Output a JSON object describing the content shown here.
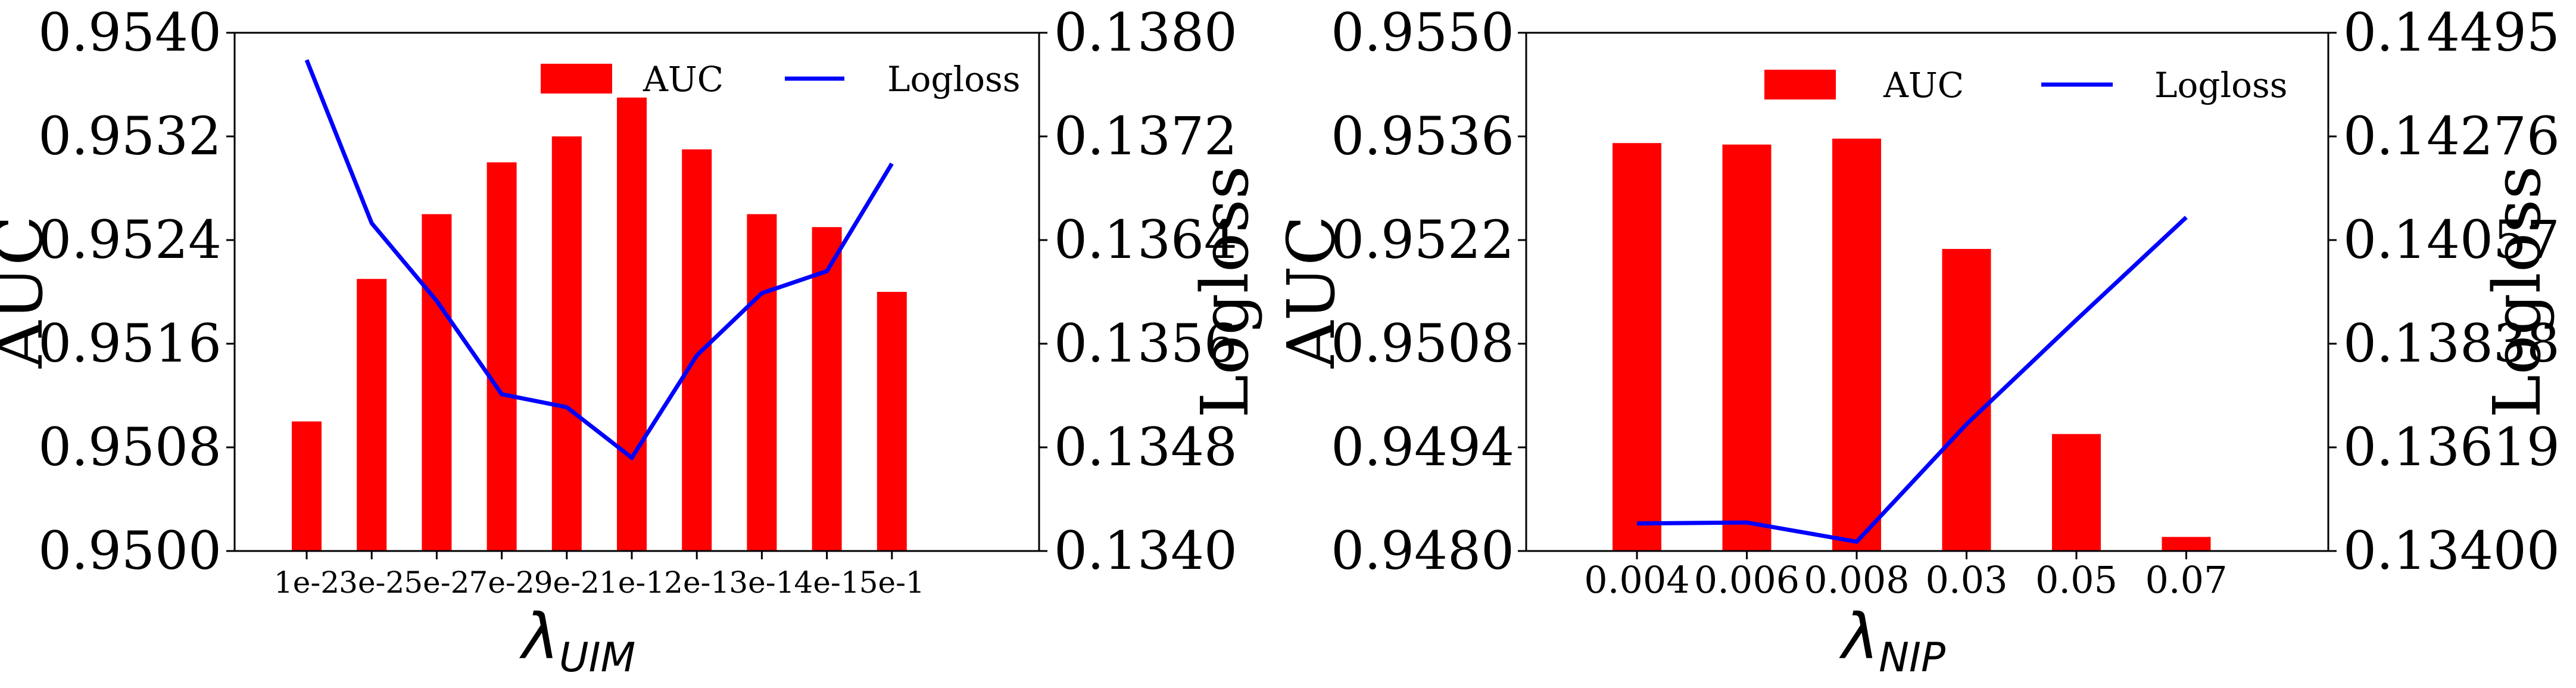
{
  "colors": {
    "bar": "#ff0000",
    "line": "#0000ff",
    "axis": "#000000"
  },
  "chart_data": [
    {
      "type": "bar",
      "categories": [
        "1e-2",
        "3e-2",
        "5e-2",
        "7e-2",
        "9e-2",
        "1e-1",
        "2e-1",
        "3e-1",
        "4e-1",
        "5e-1"
      ],
      "series": [
        {
          "name": "AUC",
          "type": "bar",
          "axis": "left",
          "values": [
            0.951,
            0.9521,
            0.9526,
            0.953,
            0.9532,
            0.9535,
            0.9531,
            0.9526,
            0.9525,
            0.952
          ]
        },
        {
          "name": "Logloss",
          "type": "line",
          "axis": "right",
          "values": [
            0.13779,
            0.13653,
            0.13593,
            0.13521,
            0.13511,
            0.13472,
            0.13551,
            0.13599,
            0.13616,
            0.13699
          ]
        }
      ],
      "ylabel": "AUC",
      "y2label": "Logloss",
      "xlabel": {
        "main": "λ",
        "sub": "UIM"
      },
      "ylim": [
        0.95,
        0.954
      ],
      "yticks": [
        "0.9500",
        "0.9508",
        "0.9516",
        "0.9524",
        "0.9532",
        "0.9540"
      ],
      "y2lim": [
        0.134,
        0.138
      ],
      "y2ticks": [
        "0.1340",
        "0.1348",
        "0.1356",
        "0.1364",
        "0.1372",
        "0.1380"
      ],
      "legend_position": "top-right",
      "grid": false
    },
    {
      "type": "bar",
      "categories": [
        "0.004",
        "0.006",
        "0.008",
        "0.03",
        "0.05",
        "0.07"
      ],
      "series": [
        {
          "name": "AUC",
          "type": "bar",
          "axis": "left",
          "values": [
            0.95351,
            0.95349,
            0.95357,
            0.95208,
            0.94958,
            0.94819
          ]
        },
        {
          "name": "Logloss",
          "type": "line",
          "axis": "right",
          "values": [
            0.134583,
            0.134601,
            0.134196,
            0.13668,
            0.138885,
            0.141051
          ]
        }
      ],
      "ylabel": "AUC",
      "y2label": "Logloss",
      "xlabel": {
        "main": "λ",
        "sub": "NIP"
      },
      "ylim": [
        0.948,
        0.955
      ],
      "yticks": [
        "0.9480",
        "0.9494",
        "0.9508",
        "0.9522",
        "0.9536",
        "0.9550"
      ],
      "y2lim": [
        0.134,
        0.14495
      ],
      "y2ticks": [
        "0.13400",
        "0.13619",
        "0.13838",
        "0.14057",
        "0.14276",
        "0.14495"
      ],
      "legend_position": "top-right",
      "grid": false
    }
  ]
}
